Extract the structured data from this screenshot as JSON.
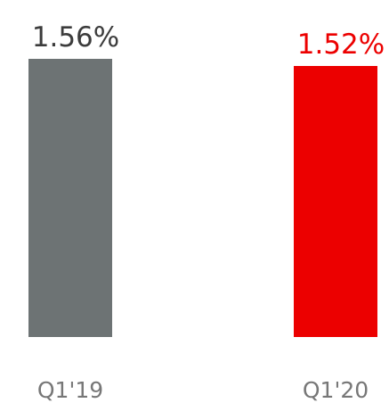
{
  "chart_data": {
    "type": "bar",
    "categories": [
      "Q1'19",
      "Q1'20"
    ],
    "values": [
      1.56,
      1.52
    ],
    "value_labels": [
      "1.56%",
      "1.52%"
    ],
    "colors": [
      "#6d7374",
      "#ec0000"
    ],
    "label_colors": [
      "#3c3c3c",
      "#ec0000"
    ]
  }
}
